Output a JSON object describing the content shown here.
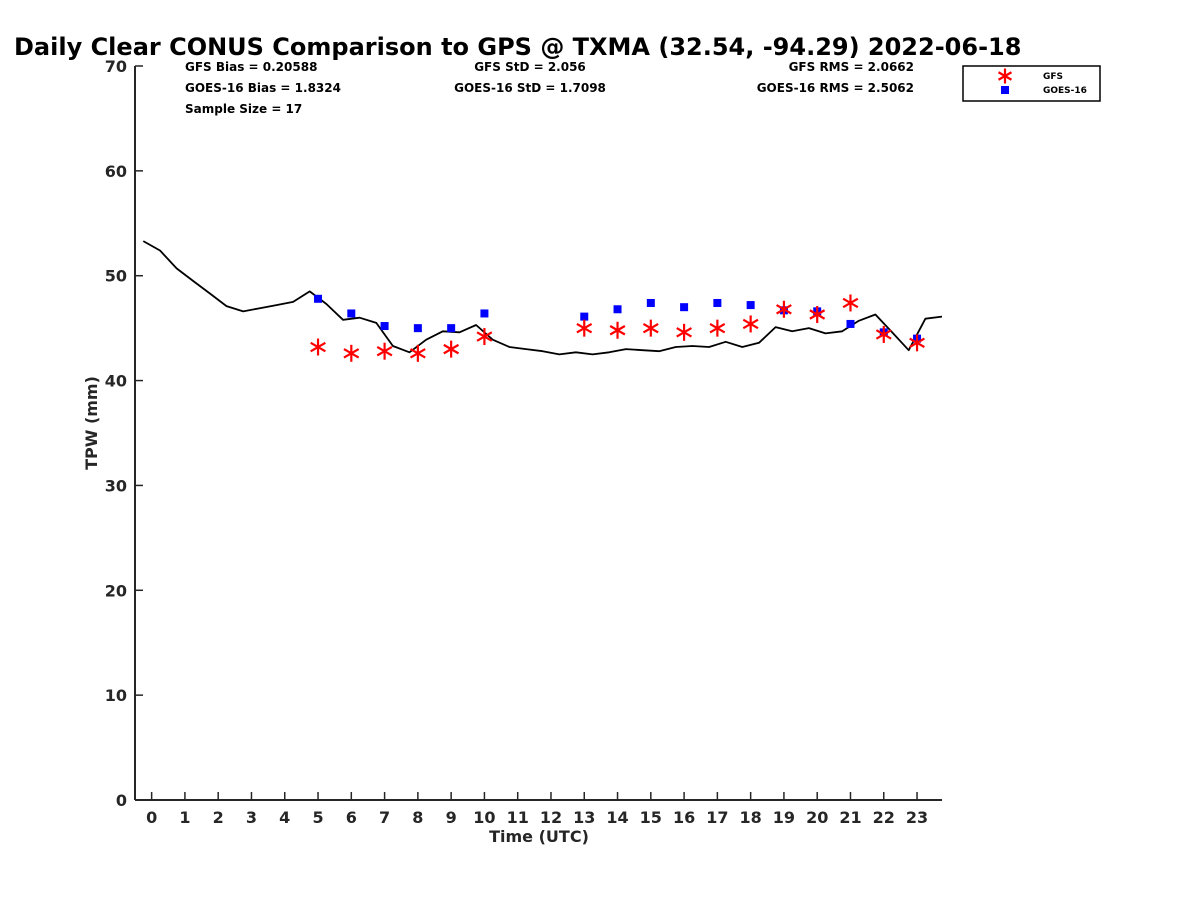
{
  "chart_data": {
    "type": "scatter",
    "title": "Daily Clear CONUS Comparison to GPS @ TXMA (32.54, -94.29) 2022-06-18",
    "xlabel": "Time (UTC)",
    "ylabel": "TPW (mm)",
    "xlim": [
      -0.5,
      23.75
    ],
    "ylim": [
      0,
      70
    ],
    "xticks": [
      0,
      1,
      2,
      3,
      4,
      5,
      6,
      7,
      8,
      9,
      10,
      11,
      12,
      13,
      14,
      15,
      16,
      17,
      18,
      19,
      20,
      21,
      22,
      23
    ],
    "yticks": [
      0,
      10,
      20,
      30,
      40,
      50,
      60,
      70
    ],
    "grid": false,
    "legend_position": "top-right",
    "stats": {
      "gfs_bias": "GFS Bias = 0.20588",
      "goes_bias": "GOES-16 Bias = 1.8324",
      "sample_size": "Sample Size = 17",
      "gfs_std": "GFS StD = 2.056",
      "goes_std": "GOES-16 StD = 1.7098",
      "gfs_rms": "GFS RMS = 2.0662",
      "goes_rms": "GOES-16 RMS = 2.5062"
    },
    "gps_line": {
      "color": "#000000",
      "x": [
        -0.25,
        0.25,
        0.75,
        1.25,
        1.75,
        2.25,
        2.75,
        3.25,
        3.75,
        4.25,
        4.75,
        5.25,
        5.75,
        6.25,
        6.75,
        7.25,
        7.75,
        8.25,
        8.75,
        9.25,
        9.75,
        10.25,
        10.75,
        11.25,
        11.75,
        12.25,
        12.75,
        13.25,
        13.75,
        14.25,
        14.75,
        15.25,
        15.75,
        16.25,
        16.75,
        17.25,
        17.75,
        18.25,
        18.75,
        19.25,
        19.75,
        20.25,
        20.75,
        21.25,
        21.75,
        22.25,
        22.75,
        23.25,
        23.75
      ],
      "y": [
        53.3,
        52.4,
        50.7,
        49.5,
        48.3,
        47.1,
        46.6,
        46.9,
        47.2,
        47.5,
        48.5,
        47.3,
        45.8,
        46.0,
        45.5,
        43.3,
        42.7,
        43.9,
        44.7,
        44.6,
        45.3,
        43.9,
        43.2,
        43.0,
        42.8,
        42.5,
        42.7,
        42.5,
        42.7,
        43.0,
        42.9,
        42.8,
        43.2,
        43.3,
        43.2,
        43.7,
        43.2,
        43.6,
        45.1,
        44.7,
        45.0,
        44.5,
        44.7,
        45.7,
        46.3,
        44.6,
        42.9,
        45.9,
        46.1
      ]
    },
    "series": [
      {
        "name": "GFS",
        "marker": "asterisk",
        "color": "#ff0000",
        "x": [
          5,
          6,
          7,
          8,
          9,
          10,
          13,
          14,
          15,
          16,
          17,
          18,
          19,
          20,
          21,
          22,
          23
        ],
        "values": [
          43.2,
          42.6,
          42.8,
          42.6,
          43.0,
          44.2,
          45.0,
          44.8,
          45.0,
          44.6,
          45.0,
          45.4,
          46.8,
          46.3,
          47.4,
          44.4,
          43.6
        ]
      },
      {
        "name": "GOES-16",
        "marker": "square",
        "color": "#0000ff",
        "x": [
          5,
          6,
          7,
          8,
          9,
          10,
          13,
          14,
          15,
          16,
          17,
          18,
          19,
          20,
          21,
          22,
          23
        ],
        "values": [
          47.8,
          46.4,
          45.2,
          45.0,
          45.0,
          46.4,
          46.1,
          46.8,
          47.4,
          47.0,
          47.4,
          47.2,
          46.7,
          46.6,
          45.4,
          44.6,
          44.0
        ]
      }
    ]
  }
}
